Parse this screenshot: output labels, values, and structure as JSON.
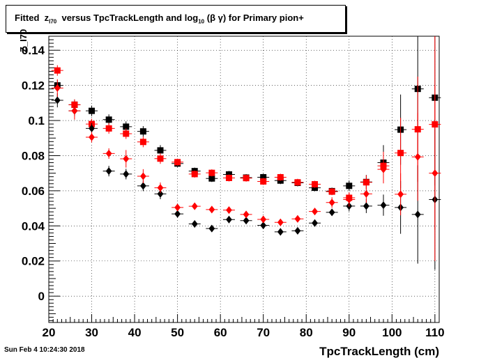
{
  "title": {
    "prefix": "Fitted  z",
    "sub1": "I70",
    "middle": "  versus TpcTrackLength and log",
    "sub2": "10",
    "suffix": " (β γ) for Primary pion+"
  },
  "footer": "Sun Feb  4 10:24:30 2018",
  "chart_data": {
    "type": "scatter",
    "title": "Fitted z_I70 versus TpcTrackLength and log10 (β γ) for Primary pion+",
    "xlabel": "TpcTrackLength (cm)",
    "ylabel": "Z_I70",
    "xlim": [
      20,
      111
    ],
    "ylim": [
      -0.015,
      0.148
    ],
    "grid": true,
    "x_ticks": [
      20,
      30,
      40,
      50,
      60,
      70,
      80,
      90,
      100,
      110
    ],
    "y_ticks": [
      0,
      0.02,
      0.04,
      0.06,
      0.08,
      0.1,
      0.12,
      0.14
    ],
    "y_tick_labels": [
      "0",
      "0.02",
      "0.04",
      "0.06",
      "0.08",
      "0.1",
      "0.12",
      "0.14"
    ],
    "series": [
      {
        "marker": "square",
        "color": "#000000",
        "x": [
          22,
          26,
          30,
          34,
          38,
          42,
          46,
          50,
          54,
          58,
          62,
          66,
          70,
          74,
          78,
          82,
          86,
          90,
          94,
          98,
          102,
          106,
          110
        ],
        "y": [
          0.12,
          0.109,
          0.1055,
          0.1005,
          0.0965,
          0.0938,
          0.083,
          0.0755,
          0.0712,
          0.067,
          0.0693,
          0.0675,
          0.0677,
          0.0658,
          0.0645,
          0.0617,
          0.0598,
          0.0628,
          0.065,
          0.076,
          0.0948,
          0.118,
          0.113
        ],
        "err": [
          0.003,
          0.003,
          0.003,
          0.003,
          0.003,
          0.003,
          0.003,
          0.002,
          0.002,
          0.002,
          0.002,
          0.002,
          0.002,
          0.002,
          0.002,
          0.002,
          0.002,
          0.003,
          0.004,
          0.01,
          0.02,
          0.04,
          0.05
        ]
      },
      {
        "marker": "square",
        "color": "#ff0000",
        "x": [
          22,
          26,
          30,
          34,
          38,
          42,
          46,
          50,
          54,
          58,
          62,
          66,
          70,
          74,
          78,
          82,
          86,
          90,
          94,
          98,
          102,
          106,
          110
        ],
        "y": [
          0.1285,
          0.109,
          0.098,
          0.0955,
          0.0925,
          0.0878,
          0.0783,
          0.0763,
          0.0695,
          0.0702,
          0.0673,
          0.0672,
          0.0653,
          0.0677,
          0.0648,
          0.0637,
          0.0595,
          0.056,
          0.0648,
          0.0742,
          0.0815,
          0.095,
          0.0978
        ],
        "err": [
          0.003,
          0.003,
          0.003,
          0.003,
          0.003,
          0.003,
          0.003,
          0.002,
          0.002,
          0.002,
          0.002,
          0.002,
          0.002,
          0.002,
          0.002,
          0.002,
          0.002,
          0.003,
          0.004,
          0.008,
          0.02,
          0.03,
          0.06
        ]
      },
      {
        "marker": "diamond",
        "color": "#000000",
        "x": [
          22,
          26,
          30,
          34,
          38,
          42,
          46,
          50,
          54,
          58,
          62,
          66,
          70,
          74,
          78,
          82,
          86,
          90,
          94,
          98,
          102,
          106,
          110
        ],
        "y": [
          0.1115,
          0.1055,
          0.0955,
          0.0712,
          0.0695,
          0.0628,
          0.0582,
          0.0468,
          0.0411,
          0.0385,
          0.0436,
          0.043,
          0.0403,
          0.0366,
          0.0372,
          0.0416,
          0.0477,
          0.0513,
          0.0513,
          0.0518,
          0.0505,
          0.0465,
          0.055
        ],
        "err": [
          0.004,
          0.003,
          0.003,
          0.003,
          0.003,
          0.003,
          0.003,
          0.002,
          0.002,
          0.002,
          0.002,
          0.002,
          0.002,
          0.002,
          0.002,
          0.002,
          0.002,
          0.003,
          0.004,
          0.006,
          0.015,
          0.028,
          0.04
        ]
      },
      {
        "marker": "diamond",
        "color": "#ff0000",
        "x": [
          22,
          26,
          30,
          34,
          38,
          42,
          46,
          50,
          54,
          58,
          62,
          66,
          70,
          74,
          78,
          82,
          86,
          90,
          94,
          98,
          102,
          106,
          110
        ],
        "y": [
          0.1185,
          0.1055,
          0.0905,
          0.0812,
          0.0782,
          0.0683,
          0.0617,
          0.0505,
          0.0512,
          0.0493,
          0.049,
          0.0465,
          0.0437,
          0.042,
          0.044,
          0.0482,
          0.0533,
          0.055,
          0.0582,
          0.0722,
          0.058,
          0.0793,
          0.07
        ],
        "err": [
          0.005,
          0.005,
          0.003,
          0.003,
          0.005,
          0.004,
          0.003,
          0.002,
          0.002,
          0.002,
          0.002,
          0.002,
          0.002,
          0.002,
          0.002,
          0.002,
          0.003,
          0.004,
          0.005,
          0.008,
          0.012,
          0.025,
          0.05
        ]
      }
    ]
  }
}
